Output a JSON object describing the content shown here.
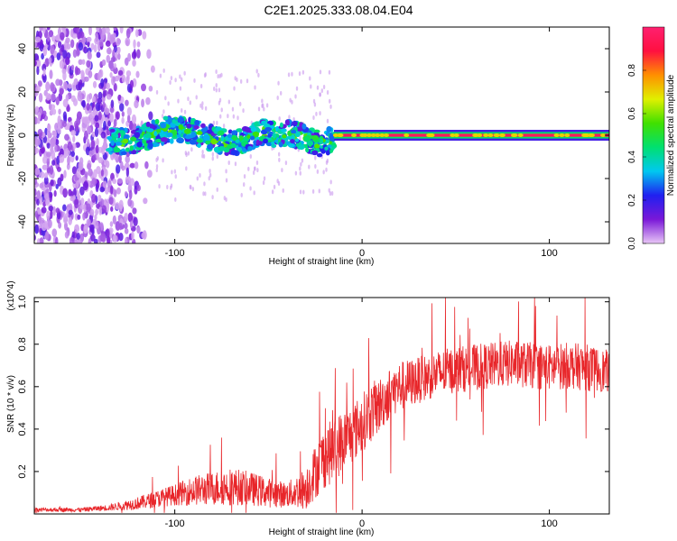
{
  "title": "C2E1.2025.333.08.04.E04",
  "colors": {
    "snr_line": "#e8262a",
    "axis": "#000000",
    "background": "#ffffff"
  },
  "chart_data": [
    {
      "type": "heatmap",
      "name": "spectrogram",
      "xlabel": "Height of straight line (km)",
      "ylabel": "Frequency (Hz)",
      "xlim": [
        -175,
        132
      ],
      "ylim": [
        -50,
        50
      ],
      "x_ticks": [
        -100,
        0,
        100
      ],
      "y_ticks": [
        -40,
        -20,
        0,
        20,
        40
      ],
      "colorbar": {
        "label": "Normalized spectral amplitude",
        "range": [
          0.0,
          1.0
        ],
        "ticks": [
          0.0,
          0.2,
          0.4,
          0.6,
          0.8
        ],
        "colormap": [
          "#e8c6f6",
          "#7a18d8",
          "#2020f0",
          "#00c8f0",
          "#00e070",
          "#40e000",
          "#e0f000",
          "#ff9000",
          "#ff1040",
          "#ff2070"
        ]
      },
      "features": [
        {
          "x_range": [
            -175,
            -110
          ],
          "freq_range": [
            -50,
            50
          ],
          "amplitude": "low, scattered noise"
        },
        {
          "x_range": [
            -135,
            -15
          ],
          "freq_range": [
            -8,
            8
          ],
          "amplitude": "medium, drifting carrier near 0 Hz"
        },
        {
          "x_range": [
            -15,
            132
          ],
          "freq_range": [
            -1,
            1
          ],
          "amplitude": "high, steady carrier at 0 Hz"
        }
      ]
    },
    {
      "type": "line",
      "name": "snr",
      "xlabel": "Height of straight line (km)",
      "ylabel": "SNR (10 * v/v)",
      "y_multiplier": "(x10^4)",
      "xlim": [
        -175,
        132
      ],
      "ylim": [
        0,
        1.02
      ],
      "x_ticks": [
        -100,
        0,
        100
      ],
      "y_ticks": [
        0.2,
        0.4,
        0.6,
        0.8,
        1.0
      ],
      "series": [
        {
          "name": "SNR",
          "x": [
            -175,
            -150,
            -135,
            -120,
            -110,
            -100,
            -90,
            -80,
            -70,
            -60,
            -50,
            -40,
            -30,
            -25,
            -20,
            -15,
            -12,
            -10,
            -5,
            0,
            5,
            10,
            15,
            20,
            30,
            40,
            50,
            60,
            70,
            80,
            90,
            100,
            110,
            120,
            132
          ],
          "y": [
            0.02,
            0.02,
            0.03,
            0.05,
            0.07,
            0.09,
            0.11,
            0.12,
            0.13,
            0.12,
            0.1,
            0.09,
            0.12,
            0.2,
            0.27,
            0.3,
            0.33,
            0.35,
            0.38,
            0.43,
            0.48,
            0.52,
            0.57,
            0.6,
            0.63,
            0.66,
            0.68,
            0.69,
            0.7,
            0.71,
            0.7,
            0.69,
            0.7,
            0.69,
            0.67
          ],
          "noise_amplitude": [
            0.01,
            0.01,
            0.015,
            0.03,
            0.04,
            0.05,
            0.07,
            0.08,
            0.09,
            0.08,
            0.07,
            0.06,
            0.1,
            0.13,
            0.15,
            0.15,
            0.15,
            0.14,
            0.14,
            0.14,
            0.14,
            0.13,
            0.12,
            0.12,
            0.11,
            0.11,
            0.11,
            0.11,
            0.11,
            0.11,
            0.11,
            0.11,
            0.11,
            0.11,
            0.1
          ]
        }
      ]
    }
  ]
}
